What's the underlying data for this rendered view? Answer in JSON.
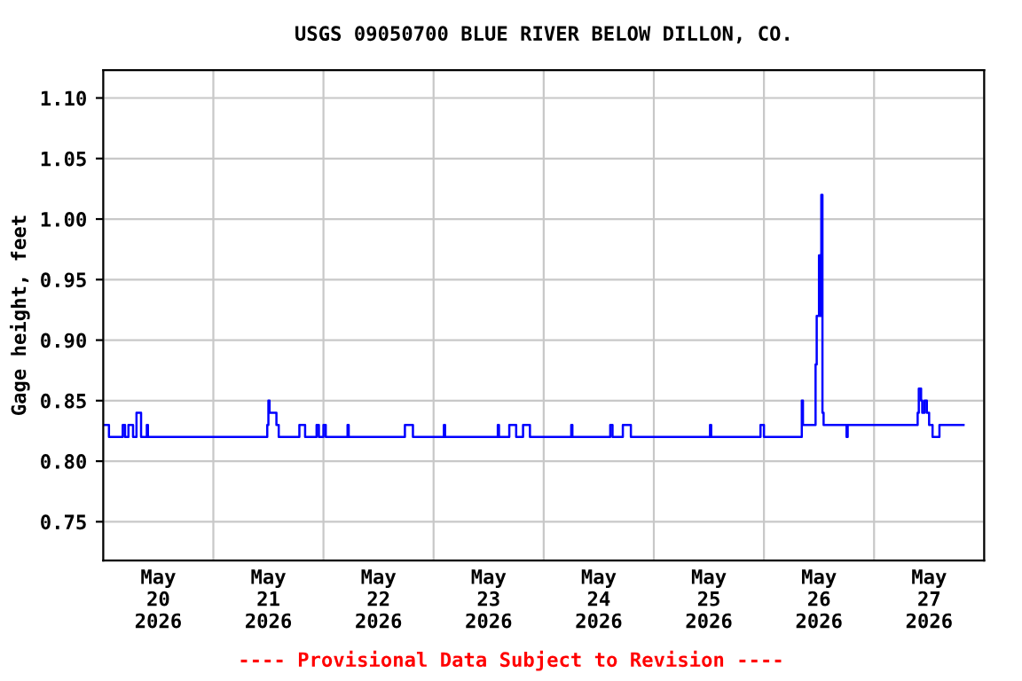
{
  "chart_data": {
    "type": "step",
    "title": "USGS 09050700 BLUE RIVER BELOW DILLON, CO.",
    "ylabel": "Gage height, feet",
    "annotations": [
      "---- Provisional Data Subject to Revision ----"
    ],
    "series": [
      {
        "color": "#0000ff",
        "x": [
          "2026-05-20T00:00",
          "2026-05-20T01:15",
          "2026-05-20T04:15",
          "2026-05-20T04:45",
          "2026-05-20T05:30",
          "2026-05-20T06:30",
          "2026-05-20T07:15",
          "2026-05-20T08:15",
          "2026-05-20T09:30",
          "2026-05-20T09:45",
          "2026-05-21T11:45",
          "2026-05-21T12:00",
          "2026-05-21T12:15",
          "2026-05-21T13:45",
          "2026-05-21T14:15",
          "2026-05-21T18:45",
          "2026-05-21T20:00",
          "2026-05-21T22:30",
          "2026-05-21T23:00",
          "2026-05-22T00:00",
          "2026-05-22T00:30",
          "2026-05-22T05:15",
          "2026-05-22T05:30",
          "2026-05-22T17:45",
          "2026-05-22T19:30",
          "2026-05-23T02:15",
          "2026-05-23T02:30",
          "2026-05-23T14:00",
          "2026-05-23T14:15",
          "2026-05-23T16:30",
          "2026-05-23T18:00",
          "2026-05-23T19:30",
          "2026-05-23T21:00",
          "2026-05-24T06:00",
          "2026-05-24T06:15",
          "2026-05-24T14:30",
          "2026-05-24T15:00",
          "2026-05-24T17:15",
          "2026-05-24T19:00",
          "2026-05-25T12:15",
          "2026-05-25T12:30",
          "2026-05-25T23:15",
          "2026-05-26T00:00",
          "2026-05-26T08:15",
          "2026-05-26T08:30",
          "2026-05-26T11:15",
          "2026-05-26T11:30",
          "2026-05-26T12:00",
          "2026-05-26T12:15",
          "2026-05-26T12:30",
          "2026-05-26T12:45",
          "2026-05-26T13:00",
          "2026-05-26T18:00",
          "2026-05-26T18:15",
          "2026-05-27T09:30",
          "2026-05-27T09:45",
          "2026-05-27T10:15",
          "2026-05-27T10:30",
          "2026-05-27T11:00",
          "2026-05-27T11:30",
          "2026-05-27T12:00",
          "2026-05-27T12:45",
          "2026-05-27T14:15",
          "2026-05-27T19:30"
        ],
        "values": [
          0.83,
          0.82,
          0.83,
          0.82,
          0.83,
          0.82,
          0.84,
          0.82,
          0.83,
          0.82,
          0.83,
          0.85,
          0.84,
          0.83,
          0.82,
          0.83,
          0.82,
          0.83,
          0.82,
          0.83,
          0.82,
          0.83,
          0.82,
          0.83,
          0.82,
          0.83,
          0.82,
          0.83,
          0.82,
          0.83,
          0.82,
          0.83,
          0.82,
          0.83,
          0.82,
          0.83,
          0.82,
          0.83,
          0.82,
          0.83,
          0.82,
          0.83,
          0.82,
          0.85,
          0.83,
          0.88,
          0.92,
          0.97,
          0.92,
          1.02,
          0.84,
          0.83,
          0.82,
          0.83,
          0.84,
          0.86,
          0.85,
          0.84,
          0.85,
          0.84,
          0.83,
          0.82,
          0.83,
          0.83
        ]
      }
    ],
    "xlim": [
      "2026-05-20",
      "2026-05-28"
    ],
    "xticks": [
      {
        "value": "2026-05-20",
        "label": null
      },
      {
        "value": "2026-05-20T12:00",
        "label": "May\n20\n2026"
      },
      {
        "value": "2026-05-21",
        "label": null
      },
      {
        "value": "2026-05-21T12:00",
        "label": "May\n21\n2026"
      },
      {
        "value": "2026-05-22",
        "label": null
      },
      {
        "value": "2026-05-22T12:00",
        "label": "May\n22\n2026"
      },
      {
        "value": "2026-05-23",
        "label": null
      },
      {
        "value": "2026-05-23T12:00",
        "label": "May\n23\n2026"
      },
      {
        "value": "2026-05-24",
        "label": null
      },
      {
        "value": "2026-05-24T12:00",
        "label": "May\n24\n2026"
      },
      {
        "value": "2026-05-25",
        "label": null
      },
      {
        "value": "2026-05-25T12:00",
        "label": "May\n25\n2026"
      },
      {
        "value": "2026-05-26",
        "label": null
      },
      {
        "value": "2026-05-26T12:00",
        "label": "May\n26\n2026"
      },
      {
        "value": "2026-05-27",
        "label": null
      },
      {
        "value": "2026-05-27T12:00",
        "label": "May\n27\n2026"
      },
      {
        "value": "2026-05-28",
        "label": null
      }
    ],
    "ylim": [
      0.718,
      1.123
    ],
    "yticks": [
      0.75,
      {
        "value": 0.8,
        "label": "0.80"
      },
      0.85,
      {
        "value": 0.9,
        "label": "0.90"
      },
      0.95,
      {
        "value": 1,
        "label": "1.00"
      },
      1.05,
      {
        "value": 1.1,
        "label": "1.10"
      }
    ],
    "grid": true,
    "marker": "none",
    "line_style": "solid",
    "legend": false
  }
}
